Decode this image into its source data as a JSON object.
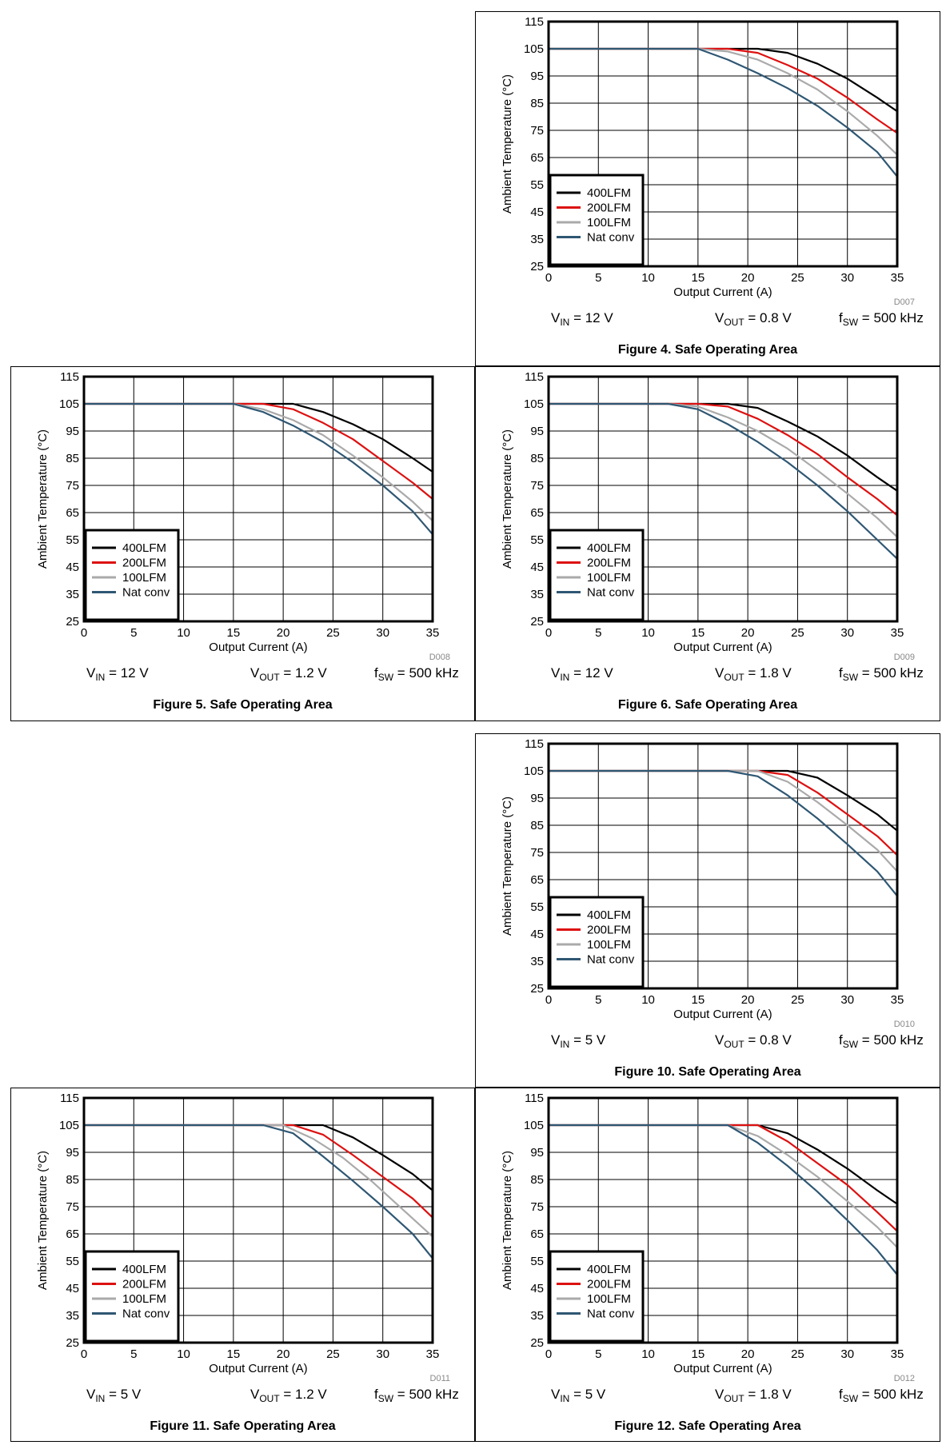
{
  "colors": {
    "400LFM": "#000000",
    "200LFM": "#dd1111",
    "100LFM": "#aaaaaa",
    "Nat conv": "#2f5773"
  },
  "chart_data": [
    {
      "type": "line",
      "caption": "Figure 4. Safe Operating Area",
      "code": "D007",
      "xlabel": "Output Current (A)",
      "ylabel": "Ambient Temperature (°C)",
      "xlim": [
        0,
        35
      ],
      "ylim": [
        25,
        115
      ],
      "xticks": [
        "0",
        "5",
        "10",
        "15",
        "20",
        "25",
        "30",
        "35"
      ],
      "yticks": [
        "25",
        "35",
        "45",
        "55",
        "65",
        "75",
        "85",
        "95",
        "105",
        "115"
      ],
      "grid": true,
      "legend": "bottom-left",
      "conditions": {
        "vin_sym": "V",
        "vin_sub": "IN",
        "vin_val": " = 12 V",
        "vout_sym": "V",
        "vout_sub": "OUT",
        "vout_val": " = 0.8 V",
        "fsw_sym": "f",
        "fsw_sub": "SW",
        "fsw_val": " = 500 kHz"
      },
      "series": [
        {
          "name": "400LFM",
          "x": [
            0,
            21,
            24,
            27,
            30,
            33,
            35
          ],
          "y": [
            105,
            105,
            103.5,
            99.5,
            94,
            87,
            82
          ]
        },
        {
          "name": "200LFM",
          "x": [
            0,
            18,
            21,
            24,
            27,
            30,
            33,
            35
          ],
          "y": [
            105,
            105,
            103.5,
            99,
            94,
            87,
            79,
            74
          ]
        },
        {
          "name": "100LFM",
          "x": [
            0,
            15,
            18,
            21,
            24,
            27,
            30,
            33,
            35
          ],
          "y": [
            105,
            105,
            104,
            101,
            96,
            90,
            82,
            73,
            66
          ]
        },
        {
          "name": "Nat conv",
          "x": [
            0,
            15,
            18,
            21,
            24,
            27,
            30,
            33,
            35
          ],
          "y": [
            105,
            105,
            101,
            96,
            90.5,
            84,
            76,
            67,
            58
          ]
        }
      ]
    },
    {
      "type": "line",
      "caption": "Figure 5. Safe Operating Area",
      "code": "D008",
      "xlabel": "Output Current (A)",
      "ylabel": "Ambient Temperature (°C)",
      "xlim": [
        0,
        35
      ],
      "ylim": [
        25,
        115
      ],
      "xticks": [
        "0",
        "5",
        "10",
        "15",
        "20",
        "25",
        "30",
        "35"
      ],
      "yticks": [
        "25",
        "35",
        "45",
        "55",
        "65",
        "75",
        "85",
        "95",
        "105",
        "115"
      ],
      "grid": true,
      "legend": "bottom-left",
      "conditions": {
        "vin_sym": "V",
        "vin_sub": "IN",
        "vin_val": " = 12 V",
        "vout_sym": "V",
        "vout_sub": "OUT",
        "vout_val": " = 1.2 V",
        "fsw_sym": "f",
        "fsw_sub": "SW",
        "fsw_val": " = 500 kHz"
      },
      "series": [
        {
          "name": "400LFM",
          "x": [
            0,
            21,
            24,
            27,
            30,
            33,
            35
          ],
          "y": [
            105,
            105,
            102,
            97.5,
            92,
            85,
            80
          ]
        },
        {
          "name": "200LFM",
          "x": [
            0,
            18,
            21,
            24,
            27,
            30,
            33,
            35
          ],
          "y": [
            105,
            105,
            103,
            98,
            92,
            84,
            76,
            70
          ]
        },
        {
          "name": "100LFM",
          "x": [
            0,
            15,
            18,
            21,
            24,
            27,
            30,
            33,
            35
          ],
          "y": [
            105,
            105,
            103,
            99,
            93.5,
            86,
            78,
            69,
            62
          ]
        },
        {
          "name": "Nat conv",
          "x": [
            0,
            15,
            18,
            21,
            24,
            27,
            30,
            33,
            35
          ],
          "y": [
            105,
            105,
            102,
            97,
            91,
            83.5,
            75,
            65.5,
            57
          ]
        }
      ]
    },
    {
      "type": "line",
      "caption": "Figure 6. Safe Operating Area",
      "code": "D009",
      "xlabel": "Output Current (A)",
      "ylabel": "Ambient Temperature (°C)",
      "xlim": [
        0,
        35
      ],
      "ylim": [
        25,
        115
      ],
      "xticks": [
        "0",
        "5",
        "10",
        "15",
        "20",
        "25",
        "30",
        "35"
      ],
      "yticks": [
        "25",
        "35",
        "45",
        "55",
        "65",
        "75",
        "85",
        "95",
        "105",
        "115"
      ],
      "grid": true,
      "legend": "bottom-left",
      "conditions": {
        "vin_sym": "V",
        "vin_sub": "IN",
        "vin_val": " = 12 V",
        "vout_sym": "V",
        "vout_sub": "OUT",
        "vout_val": " = 1.8 V",
        "fsw_sym": "f",
        "fsw_sub": "SW",
        "fsw_val": " = 500 kHz"
      },
      "series": [
        {
          "name": "400LFM",
          "x": [
            0,
            18,
            21,
            24,
            27,
            30,
            33,
            35
          ],
          "y": [
            105,
            105,
            103.5,
            98.5,
            93,
            86,
            78,
            73
          ]
        },
        {
          "name": "200LFM",
          "x": [
            0,
            15,
            18,
            21,
            24,
            27,
            30,
            33,
            35
          ],
          "y": [
            105,
            105,
            104,
            99.5,
            93.5,
            86.5,
            78,
            70,
            64
          ]
        },
        {
          "name": "100LFM",
          "x": [
            0,
            12,
            15,
            18,
            21,
            24,
            27,
            30,
            33,
            35
          ],
          "y": [
            105,
            105,
            104,
            100,
            95,
            88.5,
            80.5,
            72,
            63,
            56
          ]
        },
        {
          "name": "Nat conv",
          "x": [
            0,
            12,
            15,
            18,
            21,
            24,
            27,
            30,
            33,
            35
          ],
          "y": [
            105,
            105,
            103,
            97.5,
            91,
            83.5,
            75,
            65.5,
            55,
            48
          ]
        }
      ]
    },
    {
      "type": "line",
      "caption": "Figure 10. Safe Operating Area",
      "code": "D010",
      "xlabel": "Output Current (A)",
      "ylabel": "Ambient Temperature (°C)",
      "xlim": [
        0,
        35
      ],
      "ylim": [
        25,
        115
      ],
      "xticks": [
        "0",
        "5",
        "10",
        "15",
        "20",
        "25",
        "30",
        "35"
      ],
      "yticks": [
        "25",
        "35",
        "45",
        "55",
        "65",
        "75",
        "85",
        "95",
        "105",
        "115"
      ],
      "grid": true,
      "legend": "bottom-left",
      "conditions": {
        "vin_sym": "V",
        "vin_sub": "IN",
        "vin_val": " = 5 V",
        "vout_sym": "V",
        "vout_sub": "OUT",
        "vout_val": " = 0.8 V",
        "fsw_sym": "f",
        "fsw_sub": "SW",
        "fsw_val": " = 500 kHz"
      },
      "series": [
        {
          "name": "400LFM",
          "x": [
            0,
            24,
            27,
            30,
            33,
            35
          ],
          "y": [
            105,
            105,
            102.5,
            96,
            89,
            83
          ]
        },
        {
          "name": "200LFM",
          "x": [
            0,
            21,
            24,
            27,
            30,
            33,
            35
          ],
          "y": [
            105,
            105,
            103.5,
            97,
            89,
            81,
            74
          ]
        },
        {
          "name": "100LFM",
          "x": [
            0,
            21,
            24,
            27,
            30,
            33,
            35
          ],
          "y": [
            105,
            105,
            101,
            93.5,
            85,
            76,
            68
          ]
        },
        {
          "name": "Nat conv",
          "x": [
            0,
            18,
            21,
            24,
            27,
            30,
            33,
            35
          ],
          "y": [
            105,
            105,
            103,
            96,
            87.5,
            78,
            68,
            59
          ]
        }
      ]
    },
    {
      "type": "line",
      "caption": "Figure 11. Safe Operating Area",
      "code": "D011",
      "xlabel": "Output Current (A)",
      "ylabel": "Ambient Temperature (°C)",
      "xlim": [
        0,
        35
      ],
      "ylim": [
        25,
        115
      ],
      "xticks": [
        "0",
        "5",
        "10",
        "15",
        "20",
        "25",
        "30",
        "35"
      ],
      "yticks": [
        "25",
        "35",
        "45",
        "55",
        "65",
        "75",
        "85",
        "95",
        "105",
        "115"
      ],
      "grid": true,
      "legend": "bottom-left",
      "conditions": {
        "vin_sym": "V",
        "vin_sub": "IN",
        "vin_val": " = 5 V",
        "vout_sym": "V",
        "vout_sub": "OUT",
        "vout_val": " = 1.2 V",
        "fsw_sym": "f",
        "fsw_sub": "SW",
        "fsw_val": " = 500 kHz"
      },
      "series": [
        {
          "name": "400LFM",
          "x": [
            0,
            24,
            27,
            30,
            33,
            35
          ],
          "y": [
            105,
            105,
            100.5,
            94,
            87,
            81
          ]
        },
        {
          "name": "200LFM",
          "x": [
            0,
            21,
            24,
            27,
            30,
            33,
            35
          ],
          "y": [
            105,
            105,
            101.5,
            94,
            86,
            78,
            71
          ]
        },
        {
          "name": "100LFM",
          "x": [
            0,
            20,
            23,
            26,
            29,
            32,
            35
          ],
          "y": [
            105,
            105,
            100,
            93,
            84,
            74,
            64
          ]
        },
        {
          "name": "Nat conv",
          "x": [
            0,
            18,
            21,
            24,
            27,
            30,
            33,
            35
          ],
          "y": [
            105,
            105,
            102,
            93.5,
            84.5,
            75,
            65,
            56
          ]
        }
      ]
    },
    {
      "type": "line",
      "caption": "Figure 12. Safe Operating Area",
      "code": "D012",
      "xlabel": "Output Current (A)",
      "ylabel": "Ambient Temperature (°C)",
      "xlim": [
        0,
        35
      ],
      "ylim": [
        25,
        115
      ],
      "xticks": [
        "0",
        "5",
        "10",
        "15",
        "20",
        "25",
        "30",
        "35"
      ],
      "yticks": [
        "25",
        "35",
        "45",
        "55",
        "65",
        "75",
        "85",
        "95",
        "105",
        "115"
      ],
      "grid": true,
      "legend": "bottom-left",
      "conditions": {
        "vin_sym": "V",
        "vin_sub": "IN",
        "vin_val": " = 5 V",
        "vout_sym": "V",
        "vout_sub": "OUT",
        "vout_val": " = 1.8 V",
        "fsw_sym": "f",
        "fsw_sub": "SW",
        "fsw_val": " = 500 kHz"
      },
      "series": [
        {
          "name": "400LFM",
          "x": [
            0,
            21,
            24,
            27,
            30,
            33,
            35
          ],
          "y": [
            105,
            105,
            102,
            96,
            89,
            81,
            76
          ]
        },
        {
          "name": "200LFM",
          "x": [
            0,
            21,
            24,
            27,
            30,
            33,
            35
          ],
          "y": [
            105,
            105,
            99,
            91,
            83,
            73,
            66
          ]
        },
        {
          "name": "100LFM",
          "x": [
            0,
            18,
            21,
            24,
            27,
            30,
            33,
            35
          ],
          "y": [
            105,
            105,
            101,
            94,
            86,
            77,
            67.5,
            60
          ]
        },
        {
          "name": "Nat conv",
          "x": [
            0,
            18,
            21,
            24,
            27,
            30,
            33,
            35
          ],
          "y": [
            105,
            105,
            98.5,
            90,
            80.5,
            70,
            59,
            50
          ]
        }
      ]
    }
  ]
}
